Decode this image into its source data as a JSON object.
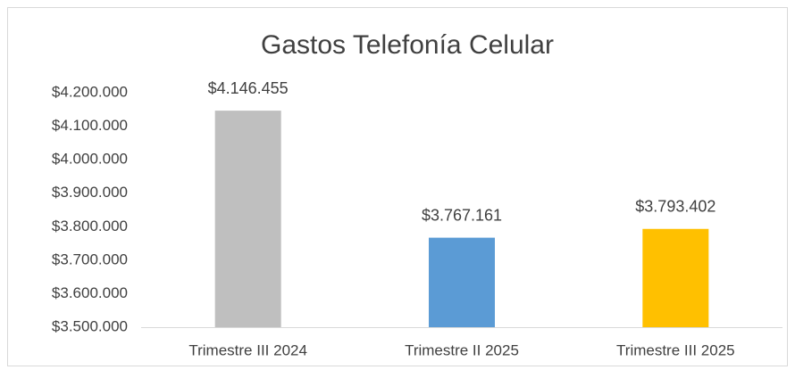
{
  "chart_data": {
    "type": "bar",
    "title": "Gastos Telefonía Celular",
    "categories": [
      "Trimestre III 2024",
      "Trimestre II 2025",
      "Trimestre III 2025"
    ],
    "values": [
      4146455,
      3767161,
      3793402
    ],
    "value_labels": [
      "$4.146.455",
      "$3.767.161",
      "$3.793.402"
    ],
    "colors": [
      "#bfbfbf",
      "#5b9bd5",
      "#ffc000"
    ],
    "ylim": [
      3500000,
      4200000
    ],
    "yticks": [
      {
        "value": 3500000,
        "label": "$3.500.000"
      },
      {
        "value": 3600000,
        "label": "$3.600.000"
      },
      {
        "value": 3700000,
        "label": "$3.700.000"
      },
      {
        "value": 3800000,
        "label": "$3.800.000"
      },
      {
        "value": 3900000,
        "label": "$3.900.000"
      },
      {
        "value": 4000000,
        "label": "$4.000.000"
      },
      {
        "value": 4100000,
        "label": "$4.100.000"
      },
      {
        "value": 4200000,
        "label": "$4.200.000"
      }
    ],
    "grid": false
  }
}
